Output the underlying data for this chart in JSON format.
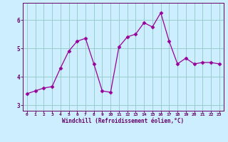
{
  "x": [
    0,
    1,
    2,
    3,
    4,
    5,
    6,
    7,
    8,
    9,
    10,
    11,
    12,
    13,
    14,
    15,
    16,
    17,
    18,
    19,
    20,
    21,
    22,
    23
  ],
  "y": [
    3.4,
    3.5,
    3.6,
    3.65,
    4.3,
    4.9,
    5.25,
    5.35,
    4.45,
    3.5,
    3.45,
    5.05,
    5.4,
    5.5,
    5.9,
    5.75,
    6.25,
    5.25,
    4.45,
    4.65,
    4.45,
    4.5,
    4.5,
    4.45
  ],
  "line_color": "#990099",
  "marker": "D",
  "marker_size": 2.5,
  "bg_color": "#cceeff",
  "grid_color": "#99cccc",
  "xlabel": "Windchill (Refroidissement éolien,°C)",
  "xlabel_color": "#660066",
  "tick_color": "#660066",
  "ylim": [
    2.8,
    6.6
  ],
  "xlim": [
    -0.5,
    23.5
  ],
  "yticks": [
    3,
    4,
    5,
    6
  ],
  "xticks": [
    0,
    1,
    2,
    3,
    4,
    5,
    6,
    7,
    8,
    9,
    10,
    11,
    12,
    13,
    14,
    15,
    16,
    17,
    18,
    19,
    20,
    21,
    22,
    23
  ]
}
